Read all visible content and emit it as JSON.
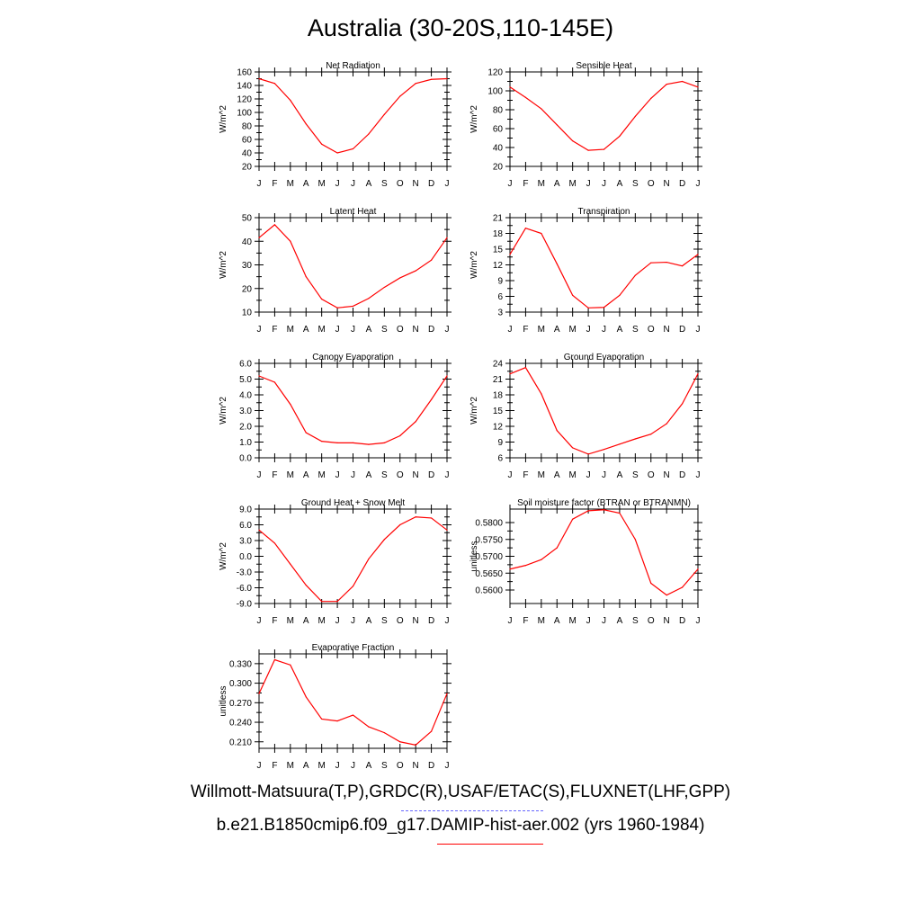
{
  "page": {
    "title": "Australia (30-20S,110-145E)",
    "legend_obs": "Willmott-Matsuura(T,P),GRDC(R),USAF/ETAC(S),FLUXNET(LHF,GPP)",
    "legend_model": "b.e21.B1850cmip6.f09_g17.DAMIP-hist-aer.002 (yrs 1960-1984)",
    "colors": {
      "model_line": "#ff0000",
      "obs_line": "#6666ff"
    }
  },
  "chart_data": [
    {
      "type": "line",
      "title": "Net Radiation",
      "ylabel": "W/m^2",
      "categories": [
        "J",
        "F",
        "M",
        "A",
        "M",
        "J",
        "J",
        "A",
        "S",
        "O",
        "N",
        "D",
        "J"
      ],
      "series": [
        {
          "values": [
            150,
            143,
            118,
            83,
            53,
            40,
            46,
            68,
            97,
            124,
            143,
            149,
            150
          ]
        }
      ],
      "ylim": [
        20,
        160
      ],
      "yticks": [
        "160",
        "140",
        "120",
        "100",
        "80",
        "60",
        "40",
        "20"
      ]
    },
    {
      "type": "line",
      "title": "Sensible Heat",
      "ylabel": "W/m^2",
      "categories": [
        "J",
        "F",
        "M",
        "A",
        "M",
        "J",
        "J",
        "A",
        "S",
        "O",
        "N",
        "D",
        "J"
      ],
      "series": [
        {
          "values": [
            104,
            93,
            81,
            64,
            47,
            37,
            38,
            52,
            73,
            92,
            107,
            110,
            104
          ]
        }
      ],
      "ylim": [
        20,
        120
      ],
      "yticks": [
        "120",
        "100",
        "80",
        "60",
        "40",
        "20"
      ]
    },
    {
      "type": "line",
      "title": "Latent Heat",
      "ylabel": "W/m^2",
      "categories": [
        "J",
        "F",
        "M",
        "A",
        "M",
        "J",
        "J",
        "A",
        "S",
        "O",
        "N",
        "D",
        "J"
      ],
      "series": [
        {
          "values": [
            41.5,
            47,
            40,
            25,
            15.5,
            11.8,
            12.5,
            15.8,
            20.5,
            24.5,
            27.5,
            32,
            41.5
          ]
        }
      ],
      "ylim": [
        10,
        50
      ],
      "yticks": [
        "50",
        "40",
        "30",
        "20",
        "10"
      ]
    },
    {
      "type": "line",
      "title": "Transpiration",
      "ylabel": "W/m^2",
      "categories": [
        "J",
        "F",
        "M",
        "A",
        "M",
        "J",
        "J",
        "A",
        "S",
        "O",
        "N",
        "D",
        "J"
      ],
      "series": [
        {
          "values": [
            14,
            19,
            18,
            12.2,
            6.2,
            3.8,
            3.9,
            6.2,
            10,
            12.4,
            12.5,
            11.8,
            14
          ]
        }
      ],
      "ylim": [
        3,
        21
      ],
      "yticks": [
        "21",
        "18",
        "15",
        "12",
        "9",
        "6",
        "3"
      ]
    },
    {
      "type": "line",
      "title": "Canopy Evaporation",
      "ylabel": "W/m^2",
      "categories": [
        "J",
        "F",
        "M",
        "A",
        "M",
        "J",
        "J",
        "A",
        "S",
        "O",
        "N",
        "D",
        "J"
      ],
      "series": [
        {
          "values": [
            5.2,
            4.8,
            3.4,
            1.6,
            1.05,
            0.95,
            0.95,
            0.85,
            0.95,
            1.4,
            2.3,
            3.7,
            5.2
          ]
        }
      ],
      "ylim": [
        0,
        6
      ],
      "yticks": [
        "6.0",
        "5.0",
        "4.0",
        "3.0",
        "2.0",
        "1.0",
        "0.0"
      ]
    },
    {
      "type": "line",
      "title": "Ground Evaporation",
      "ylabel": "W/m^2",
      "categories": [
        "J",
        "F",
        "M",
        "A",
        "M",
        "J",
        "J",
        "A",
        "S",
        "O",
        "N",
        "D",
        "J"
      ],
      "series": [
        {
          "values": [
            22,
            23.2,
            18.2,
            11.2,
            7.9,
            6.7,
            7.6,
            8.6,
            9.6,
            10.5,
            12.5,
            16.3,
            22
          ]
        }
      ],
      "ylim": [
        6,
        24
      ],
      "yticks": [
        "24",
        "21",
        "18",
        "15",
        "12",
        "9",
        "6"
      ]
    },
    {
      "type": "line",
      "title": "Ground Heat + Snow Melt",
      "ylabel": "W/m^2",
      "categories": [
        "J",
        "F",
        "M",
        "A",
        "M",
        "J",
        "J",
        "A",
        "S",
        "O",
        "N",
        "D",
        "J"
      ],
      "series": [
        {
          "values": [
            5,
            2.5,
            -1.5,
            -5.5,
            -8.6,
            -8.6,
            -5.7,
            -0.5,
            3.2,
            6,
            7.5,
            7.3,
            5
          ]
        }
      ],
      "ylim": [
        -9,
        9
      ],
      "yticks": [
        "9.0",
        "6.0",
        "3.0",
        "0.0",
        "-3.0",
        "-6.0",
        "-9.0"
      ]
    },
    {
      "type": "line",
      "title": "Soil moisture factor (BTRAN or BTRANMN)",
      "ylabel": "unitless",
      "categories": [
        "J",
        "F",
        "M",
        "A",
        "M",
        "J",
        "J",
        "A",
        "S",
        "O",
        "N",
        "D",
        "J"
      ],
      "series": [
        {
          "values": [
            0.5662,
            0.5673,
            0.569,
            0.5725,
            0.581,
            0.5835,
            0.5838,
            0.5828,
            0.575,
            0.562,
            0.5585,
            0.5608,
            0.5662
          ]
        }
      ],
      "ylim": [
        0.556,
        0.584
      ],
      "yticks": [
        "0.5800",
        "0.5750",
        "0.5700",
        "0.5650",
        "0.5600"
      ],
      "ytick_values": [
        0.58,
        0.575,
        0.57,
        0.565,
        0.56
      ]
    },
    {
      "type": "line",
      "title": "Evaporative Fraction",
      "ylabel": "unitless",
      "categories": [
        "J",
        "F",
        "M",
        "A",
        "M",
        "J",
        "J",
        "A",
        "S",
        "O",
        "N",
        "D",
        "J"
      ],
      "series": [
        {
          "values": [
            0.284,
            0.336,
            0.328,
            0.279,
            0.245,
            0.242,
            0.251,
            0.233,
            0.224,
            0.21,
            0.205,
            0.226,
            0.284
          ]
        }
      ],
      "ylim": [
        0.2,
        0.345
      ],
      "yticks": [
        "0.330",
        "0.300",
        "0.270",
        "0.240",
        "0.210"
      ],
      "ytick_values": [
        0.33,
        0.3,
        0.27,
        0.24,
        0.21
      ]
    }
  ]
}
